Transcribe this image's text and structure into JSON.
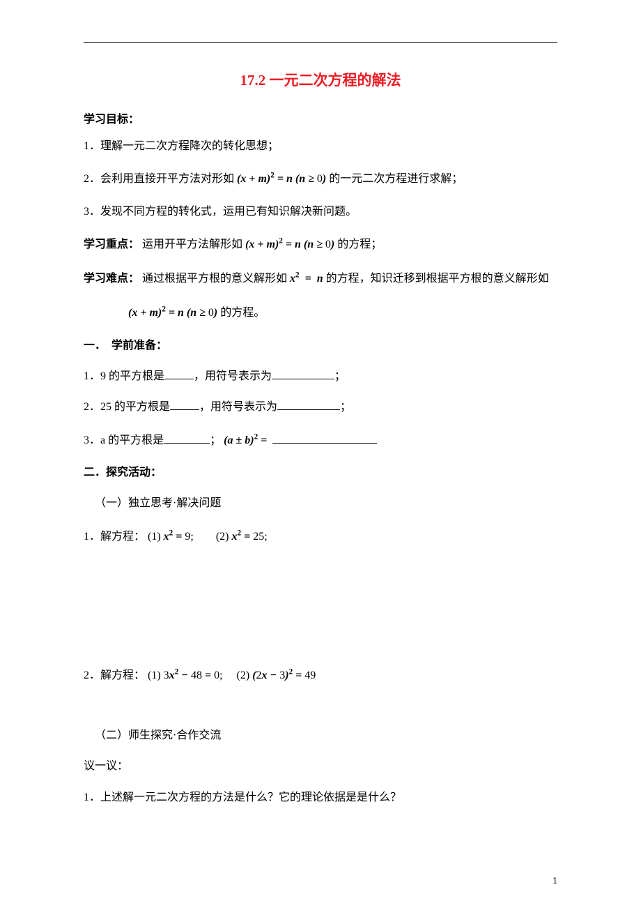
{
  "colors": {
    "title_color": "#ed1c24",
    "text_color": "#000000",
    "background": "#ffffff",
    "rule_color": "#000000"
  },
  "typography": {
    "body_font": "SimSun",
    "math_font": "Times New Roman",
    "title_size_pt": 16,
    "body_size_pt": 12
  },
  "title": "17.2 一元二次方程的解法",
  "sections": {
    "objectives_label": "学习目标：",
    "obj1": "1．理解一元二次方程降次的转化思想；",
    "obj2_pre": "2．会利用直接开平方法对形如",
    "obj2_math": "(x + m)² = n (n ≥ 0)",
    "obj2_post": " 的一元二次方程进行求解；",
    "obj3": "3．发现不同方程的转化式，运用已有知识解决新问题。",
    "keypoint_label": "学习重点：",
    "keypoint_pre": "运用开平方法解形如",
    "keypoint_math": "(x + m)² = n (n ≥ 0)",
    "keypoint_post": " 的方程；",
    "difficulty_label": "学习难点：",
    "difficulty_pre": "通过根据平方根的意义解形如 ",
    "difficulty_math1": "x²  =  n",
    "difficulty_mid": " 的方程，知识迁移到根据平方根的意义解形如",
    "difficulty_math2": "(x + m)² = n (n ≥ 0)",
    "difficulty_post": " 的方程。",
    "prep_label": "一．　学前准备：",
    "prep1_a": "1．9 的平方根是",
    "prep1_b": "，用符号表示为",
    "prep1_c": "；",
    "prep2_a": "2．25 的平方根是",
    "prep2_b": "，用符号表示为",
    "prep2_c": "；",
    "prep3_a": "3．a 的平方根是",
    "prep3_b": "；",
    "prep3_math": "(a ± b)² = ",
    "explore_label": "二．探究活动：",
    "explore_sub1": "（一）独立思考·解决问题",
    "solve1_pre": "1．解方程：",
    "solve1_math": "(1) x² = 9;        (2) x² = 25;",
    "solve2_pre": "2．解方程：",
    "solve2_math": "(1) 3x² − 48 = 0;     (2) (2x − 3)² = 49",
    "explore_sub2": "（二）师生探究·合作交流",
    "discuss_label": "议一议：",
    "discuss1": "1．上述解一元二次方程的方法是什么？它的理论依据是是什么？"
  },
  "page_number": "1"
}
